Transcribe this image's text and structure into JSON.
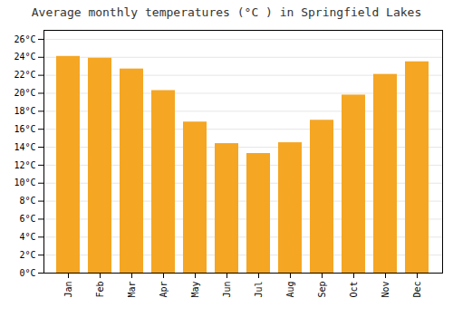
{
  "chart_data": {
    "type": "bar",
    "title": "Average monthly temperatures (°C ) in Springfield Lakes",
    "categories": [
      "Jan",
      "Feb",
      "Mar",
      "Apr",
      "May",
      "Jun",
      "Jul",
      "Aug",
      "Sep",
      "Oct",
      "Nov",
      "Dec"
    ],
    "values": [
      24.1,
      23.9,
      22.7,
      20.3,
      16.8,
      14.4,
      13.3,
      14.5,
      17.0,
      19.8,
      22.1,
      23.5
    ],
    "color": "#F5A623",
    "ylim": [
      0,
      27
    ],
    "yticks": [
      {
        "value": 0,
        "label": "0°C"
      },
      {
        "value": 2,
        "label": "2°C"
      },
      {
        "value": 4,
        "label": "4°C"
      },
      {
        "value": 6,
        "label": "6°C"
      },
      {
        "value": 8,
        "label": "8°C"
      },
      {
        "value": 10,
        "label": "10°C"
      },
      {
        "value": 12,
        "label": "12°C"
      },
      {
        "value": 14,
        "label": "14°C"
      },
      {
        "value": 16,
        "label": "16°C"
      },
      {
        "value": 18,
        "label": "18°C"
      },
      {
        "value": 20,
        "label": "20°C"
      },
      {
        "value": 22,
        "label": "22°C"
      },
      {
        "value": 24,
        "label": "24°C"
      },
      {
        "value": 26,
        "label": "26°C"
      }
    ],
    "grid": true
  }
}
